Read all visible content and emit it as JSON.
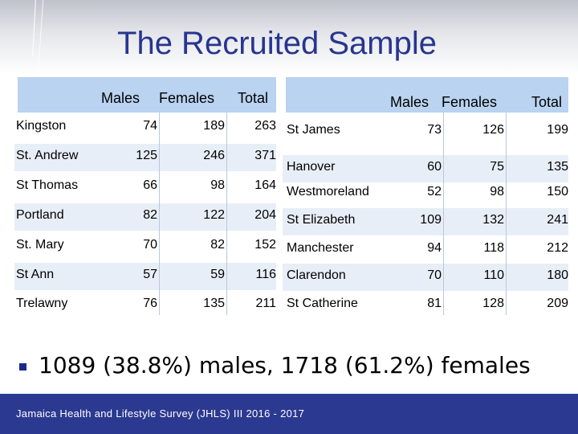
{
  "title": "The Recruited Sample",
  "left_table": {
    "headers": [
      "Males",
      "Females",
      "Total"
    ],
    "rows": [
      {
        "parish": "Kingston",
        "males": "74",
        "females": "189",
        "total": "263"
      },
      {
        "parish": "St. Andrew",
        "males": "125",
        "females": "246",
        "total": "371"
      },
      {
        "parish": "St Thomas",
        "males": "66",
        "females": "98",
        "total": "164"
      },
      {
        "parish": "Portland",
        "males": "82",
        "females": "122",
        "total": "204"
      },
      {
        "parish": "St. Mary",
        "males": "70",
        "females": "82",
        "total": "152"
      },
      {
        "parish": "St Ann",
        "males": "57",
        "females": "59",
        "total": "116"
      },
      {
        "parish": "Trelawny",
        "males": "76",
        "females": "135",
        "total": "211"
      }
    ]
  },
  "right_table": {
    "headers": [
      "Males",
      "Females",
      "Total"
    ],
    "rows": [
      {
        "parish": "St James",
        "males": "73",
        "females": "126",
        "total": "199"
      },
      {
        "parish": "Hanover",
        "males": "60",
        "females": "75",
        "total": "135"
      },
      {
        "parish": "Westmoreland",
        "males": "52",
        "females": "98",
        "total": "150"
      },
      {
        "parish": "St Elizabeth",
        "males": "109",
        "females": "132",
        "total": "241"
      },
      {
        "parish": "Manchester",
        "males": "94",
        "females": "118",
        "total": "212"
      },
      {
        "parish": "Clarendon",
        "males": "70",
        "females": "110",
        "total": "180"
      },
      {
        "parish": "St Catherine",
        "males": "81",
        "females": "128",
        "total": "209"
      }
    ]
  },
  "summary": "1089 (38.8%) males, 1718 (61.2%) females",
  "footer": "Jamaica Health and Lifestyle Survey (JHLS) III 2016 - 2017",
  "colors": {
    "title": "#27358f",
    "footer_bg": "#2b3990",
    "header_bg": "#b9d3f0",
    "bullet": "#1b2a8a"
  }
}
